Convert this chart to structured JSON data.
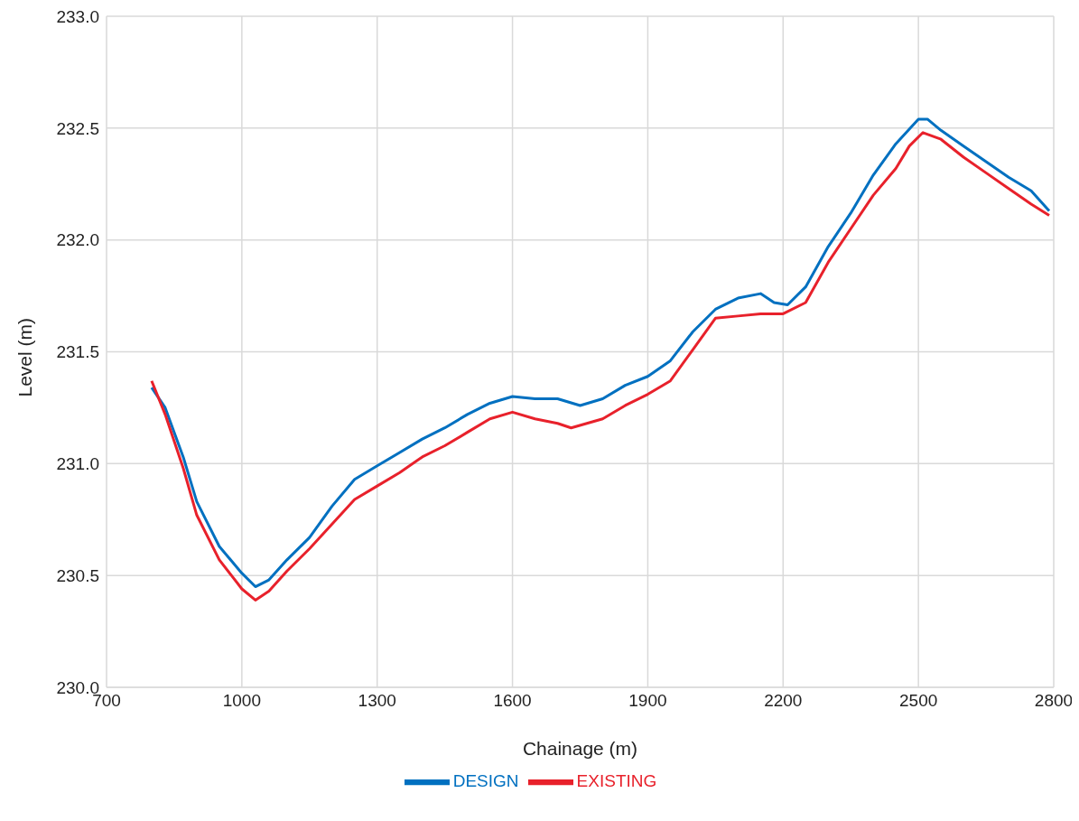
{
  "chart_data": {
    "type": "line",
    "xlabel": "Chainage (m)",
    "ylabel": "Level (m)",
    "xlim": [
      700,
      2800
    ],
    "xticks": [
      700,
      1000,
      1300,
      1600,
      1900,
      2200,
      2500,
      2800
    ],
    "ylim": [
      230,
      233
    ],
    "yticks": [
      {
        "value": 230,
        "label": "230.0"
      },
      {
        "value": 230.5,
        "label": "230.5"
      },
      {
        "value": 231,
        "label": "231.0"
      },
      {
        "value": 231.5,
        "label": "231.5"
      },
      {
        "value": 232,
        "label": "232.0"
      },
      {
        "value": 232.5,
        "label": "232.5"
      },
      {
        "value": 233,
        "label": "233.0"
      }
    ],
    "grid": true,
    "legend": "bottom",
    "marker": "none",
    "line_style": "solid",
    "series": [
      {
        "name": "DESIGN",
        "color": "#0070c0",
        "x": [
          800,
          830,
          870,
          900,
          950,
          1000,
          1030,
          1060,
          1100,
          1150,
          1200,
          1250,
          1300,
          1350,
          1400,
          1450,
          1500,
          1550,
          1600,
          1650,
          1700,
          1750,
          1800,
          1850,
          1900,
          1950,
          2000,
          2050,
          2100,
          2150,
          2180,
          2210,
          2250,
          2300,
          2350,
          2400,
          2450,
          2500,
          2520,
          2550,
          2600,
          2650,
          2700,
          2750,
          2790
        ],
        "values": [
          231.34,
          231.25,
          231.03,
          230.83,
          230.63,
          230.51,
          230.45,
          230.48,
          230.57,
          230.67,
          230.81,
          230.93,
          230.99,
          231.05,
          231.11,
          231.16,
          231.22,
          231.27,
          231.3,
          231.29,
          231.29,
          231.26,
          231.29,
          231.35,
          231.39,
          231.46,
          231.59,
          231.69,
          231.74,
          231.76,
          231.72,
          231.71,
          231.79,
          231.97,
          232.12,
          232.29,
          232.43,
          232.54,
          232.54,
          232.49,
          232.42,
          232.35,
          232.28,
          232.22,
          232.13
        ]
      },
      {
        "name": "EXISTING",
        "color": "#e8212b",
        "x": [
          800,
          830,
          870,
          900,
          950,
          1000,
          1030,
          1060,
          1100,
          1150,
          1200,
          1250,
          1300,
          1350,
          1400,
          1450,
          1500,
          1550,
          1600,
          1650,
          1700,
          1730,
          1800,
          1850,
          1900,
          1950,
          2000,
          2050,
          2100,
          2150,
          2200,
          2250,
          2300,
          2350,
          2400,
          2450,
          2480,
          2510,
          2550,
          2600,
          2650,
          2700,
          2750,
          2790
        ],
        "values": [
          231.37,
          231.22,
          230.98,
          230.77,
          230.57,
          230.44,
          230.39,
          230.43,
          230.52,
          230.62,
          230.73,
          230.84,
          230.9,
          230.96,
          231.03,
          231.08,
          231.14,
          231.2,
          231.23,
          231.2,
          231.18,
          231.16,
          231.2,
          231.26,
          231.31,
          231.37,
          231.51,
          231.65,
          231.66,
          231.67,
          231.67,
          231.72,
          231.9,
          232.05,
          232.2,
          232.32,
          232.42,
          232.48,
          232.45,
          232.37,
          232.3,
          232.23,
          232.16,
          232.11
        ]
      }
    ]
  }
}
